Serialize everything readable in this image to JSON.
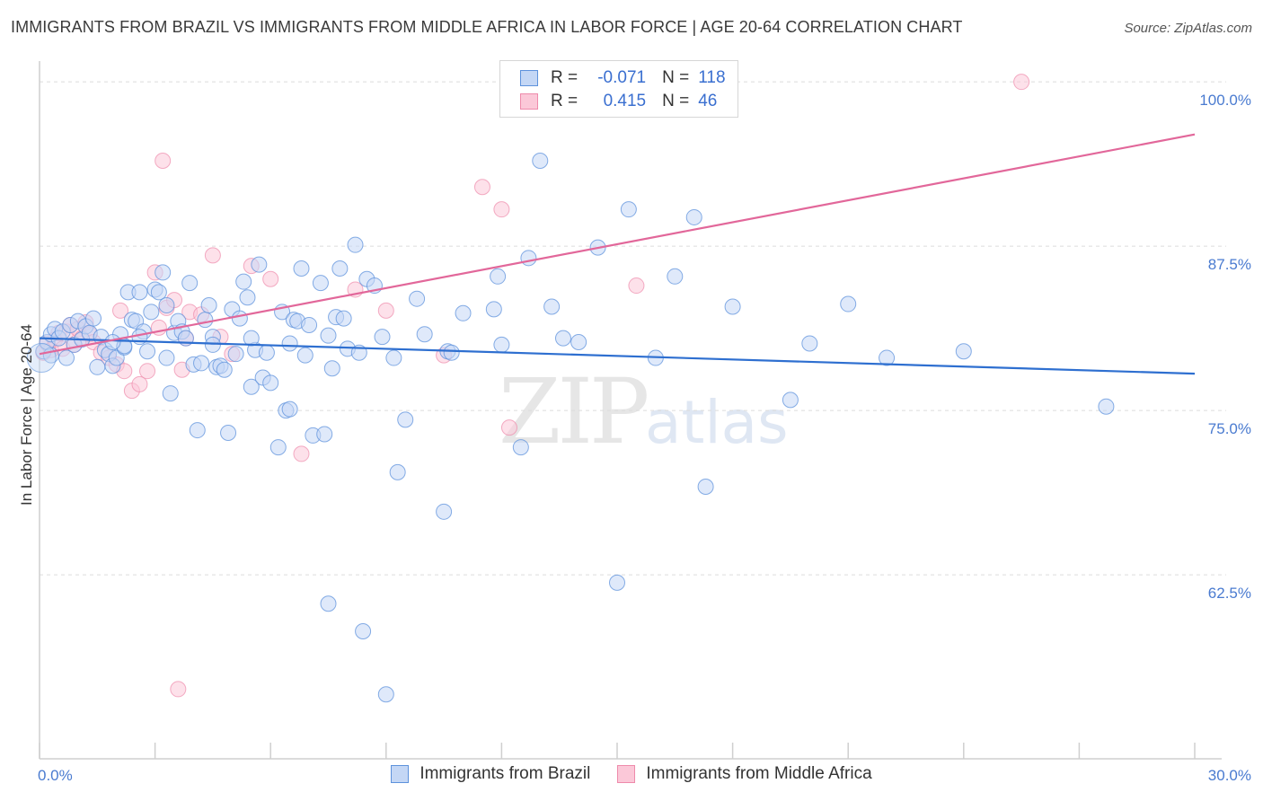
{
  "title": "IMMIGRANTS FROM BRAZIL VS IMMIGRANTS FROM MIDDLE AFRICA IN LABOR FORCE | AGE 20-64 CORRELATION CHART",
  "source": "Source: ZipAtlas.com",
  "watermark": {
    "zip": "ZIP",
    "atlas": "atlas"
  },
  "legend": {
    "r_label": "R =",
    "n_label": "N =",
    "brazil": {
      "r": "-0.071",
      "n": "118"
    },
    "africa": {
      "r": "0.415",
      "n": "46"
    }
  },
  "colors": {
    "brazil_fill": "#c4d7f5",
    "brazil_stroke": "#5d92dc",
    "brazil_line": "#2e6fd0",
    "africa_fill": "#fbc8d8",
    "africa_stroke": "#ee8aab",
    "africa_line": "#e2679a",
    "tick_text": "#4a7bd0",
    "grid": "#dcdcdc"
  },
  "chart_data": {
    "type": "scatter",
    "title": "IMMIGRANTS FROM BRAZIL VS IMMIGRANTS FROM MIDDLE AFRICA IN LABOR FORCE | AGE 20-64 CORRELATION CHART",
    "xlabel": "",
    "ylabel": "In Labor Force | Age 20-64",
    "xlim": [
      0,
      30
    ],
    "ylim": [
      50,
      100
    ],
    "x_tick_labels": [
      "0.0%",
      "30.0%"
    ],
    "y_ticks": [
      62.5,
      75.0,
      87.5,
      100.0
    ],
    "y_tick_labels": [
      "62.5%",
      "75.0%",
      "87.5%",
      "100.0%"
    ],
    "grid": true,
    "legend_position": "top-center",
    "series": [
      {
        "name": "Immigrants from Brazil",
        "r": -0.071,
        "n": 118,
        "trend": [
          [
            0,
            80.5
          ],
          [
            30,
            77.8
          ]
        ],
        "points": [
          [
            0.1,
            79.5
          ],
          [
            0.2,
            80.2
          ],
          [
            0.3,
            80.8
          ],
          [
            0.4,
            81.2
          ],
          [
            0.5,
            80.5
          ],
          [
            0.6,
            81.0
          ],
          [
            0.8,
            81.5
          ],
          [
            0.9,
            80.0
          ],
          [
            1.0,
            81.8
          ],
          [
            1.1,
            80.4
          ],
          [
            1.2,
            81.4
          ],
          [
            1.3,
            80.9
          ],
          [
            1.4,
            82.0
          ],
          [
            1.6,
            80.6
          ],
          [
            1.7,
            79.6
          ],
          [
            1.8,
            79.3
          ],
          [
            1.9,
            78.4
          ],
          [
            2.0,
            79.0
          ],
          [
            2.1,
            80.8
          ],
          [
            2.2,
            79.8
          ],
          [
            2.3,
            84.0
          ],
          [
            2.4,
            81.9
          ],
          [
            2.5,
            81.8
          ],
          [
            2.6,
            84.0
          ],
          [
            2.7,
            81.0
          ],
          [
            2.8,
            79.5
          ],
          [
            2.9,
            82.5
          ],
          [
            3.0,
            84.2
          ],
          [
            3.1,
            84.0
          ],
          [
            3.2,
            85.5
          ],
          [
            3.3,
            83.0
          ],
          [
            3.4,
            76.3
          ],
          [
            3.5,
            80.9
          ],
          [
            3.6,
            81.8
          ],
          [
            3.7,
            81.0
          ],
          [
            3.8,
            80.5
          ],
          [
            3.9,
            84.7
          ],
          [
            4.0,
            78.5
          ],
          [
            4.1,
            73.5
          ],
          [
            4.2,
            78.6
          ],
          [
            4.3,
            81.9
          ],
          [
            4.4,
            83.0
          ],
          [
            4.5,
            80.6
          ],
          [
            4.6,
            78.3
          ],
          [
            4.7,
            78.4
          ],
          [
            4.8,
            78.1
          ],
          [
            4.9,
            73.3
          ],
          [
            5.0,
            82.7
          ],
          [
            5.1,
            79.3
          ],
          [
            5.2,
            82.0
          ],
          [
            5.3,
            84.8
          ],
          [
            5.4,
            83.6
          ],
          [
            5.5,
            76.8
          ],
          [
            5.6,
            79.6
          ],
          [
            5.7,
            86.1
          ],
          [
            5.8,
            77.5
          ],
          [
            5.9,
            79.4
          ],
          [
            6.0,
            77.1
          ],
          [
            6.2,
            72.2
          ],
          [
            6.3,
            82.5
          ],
          [
            6.4,
            75.0
          ],
          [
            6.5,
            75.1
          ],
          [
            6.6,
            81.9
          ],
          [
            6.7,
            81.8
          ],
          [
            6.8,
            85.8
          ],
          [
            6.9,
            79.2
          ],
          [
            7.0,
            81.5
          ],
          [
            7.1,
            73.1
          ],
          [
            7.3,
            84.7
          ],
          [
            7.4,
            73.2
          ],
          [
            7.5,
            60.3
          ],
          [
            7.6,
            78.2
          ],
          [
            7.7,
            82.1
          ],
          [
            7.8,
            85.8
          ],
          [
            7.9,
            82.0
          ],
          [
            8.0,
            79.7
          ],
          [
            8.2,
            87.6
          ],
          [
            8.3,
            79.4
          ],
          [
            8.4,
            58.2
          ],
          [
            8.5,
            85.0
          ],
          [
            8.7,
            84.5
          ],
          [
            8.9,
            80.6
          ],
          [
            9.0,
            53.4
          ],
          [
            9.2,
            79.0
          ],
          [
            9.3,
            70.3
          ],
          [
            9.5,
            74.3
          ],
          [
            9.8,
            83.5
          ],
          [
            10.0,
            80.8
          ],
          [
            10.5,
            67.3
          ],
          [
            10.6,
            79.5
          ],
          [
            10.7,
            79.4
          ],
          [
            11.0,
            82.4
          ],
          [
            11.8,
            82.7
          ],
          [
            11.9,
            85.2
          ],
          [
            12.0,
            80.0
          ],
          [
            12.5,
            72.2
          ],
          [
            12.7,
            86.6
          ],
          [
            13.0,
            94.0
          ],
          [
            13.3,
            82.9
          ],
          [
            13.6,
            80.5
          ],
          [
            14.5,
            87.4
          ],
          [
            14.0,
            80.2
          ],
          [
            15.0,
            61.9
          ],
          [
            15.3,
            90.3
          ],
          [
            16.0,
            79.0
          ],
          [
            16.5,
            85.2
          ],
          [
            17.0,
            89.7
          ],
          [
            17.3,
            69.2
          ],
          [
            18.0,
            82.9
          ],
          [
            19.5,
            75.8
          ],
          [
            21.0,
            83.1
          ],
          [
            27.7,
            75.3
          ],
          [
            22.0,
            79.0
          ],
          [
            20.0,
            80.1
          ],
          [
            24.0,
            79.5
          ],
          [
            2.2,
            79.9
          ],
          [
            3.3,
            79.0
          ],
          [
            4.5,
            80.0
          ],
          [
            1.5,
            78.3
          ],
          [
            0.7,
            79.0
          ],
          [
            5.5,
            80.5
          ],
          [
            6.5,
            80.1
          ],
          [
            7.5,
            80.7
          ],
          [
            0.3,
            79.2
          ],
          [
            1.9,
            80.2
          ],
          [
            2.6,
            80.6
          ]
        ]
      },
      {
        "name": "Immigrants from Middle Africa",
        "r": 0.415,
        "n": 46,
        "trend": [
          [
            0,
            79.3
          ],
          [
            30,
            96.0
          ]
        ],
        "points": [
          [
            0.1,
            79.4
          ],
          [
            0.2,
            80.1
          ],
          [
            0.3,
            79.6
          ],
          [
            0.4,
            80.4
          ],
          [
            0.5,
            80.9
          ],
          [
            0.6,
            79.7
          ],
          [
            0.7,
            81.0
          ],
          [
            0.8,
            81.5
          ],
          [
            0.9,
            80.0
          ],
          [
            1.0,
            81.2
          ],
          [
            1.1,
            80.5
          ],
          [
            1.2,
            81.7
          ],
          [
            1.3,
            80.8
          ],
          [
            1.4,
            80.2
          ],
          [
            1.6,
            79.4
          ],
          [
            1.8,
            79.0
          ],
          [
            2.0,
            78.5
          ],
          [
            2.1,
            82.6
          ],
          [
            2.2,
            78.0
          ],
          [
            2.4,
            76.5
          ],
          [
            2.6,
            77.0
          ],
          [
            2.8,
            78.0
          ],
          [
            3.0,
            85.5
          ],
          [
            3.1,
            81.3
          ],
          [
            3.2,
            94.0
          ],
          [
            3.3,
            82.8
          ],
          [
            3.5,
            83.4
          ],
          [
            3.7,
            78.1
          ],
          [
            3.8,
            80.5
          ],
          [
            3.9,
            82.5
          ],
          [
            4.2,
            82.3
          ],
          [
            4.5,
            86.8
          ],
          [
            4.7,
            80.6
          ],
          [
            5.0,
            79.3
          ],
          [
            5.5,
            86.0
          ],
          [
            6.0,
            85.0
          ],
          [
            6.8,
            71.7
          ],
          [
            8.2,
            84.2
          ],
          [
            9.0,
            82.6
          ],
          [
            10.5,
            79.2
          ],
          [
            11.5,
            92.0
          ],
          [
            12.0,
            90.3
          ],
          [
            12.2,
            73.7
          ],
          [
            15.5,
            84.5
          ],
          [
            3.6,
            53.8
          ],
          [
            25.5,
            100.0
          ]
        ]
      }
    ]
  },
  "bottom_legend": [
    "Immigrants from Brazil",
    "Immigrants from Middle Africa"
  ]
}
